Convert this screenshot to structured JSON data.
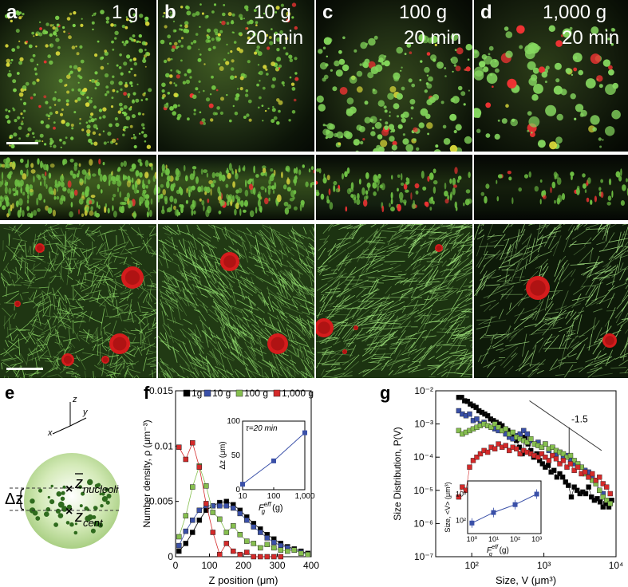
{
  "panels": {
    "a": {
      "letter": "a",
      "gravity": "1 g",
      "time": ""
    },
    "b": {
      "letter": "b",
      "gravity": "10 g",
      "time": "20 min"
    },
    "c": {
      "letter": "c",
      "gravity": "100 g",
      "time": "20 min"
    },
    "d": {
      "letter": "d",
      "gravity": "1,000 g",
      "time": "20 min"
    },
    "e": {
      "letter": "e"
    },
    "f": {
      "letter": "f"
    },
    "g": {
      "letter": "g"
    }
  },
  "schematic": {
    "axis_x": "x",
    "axis_y": "y",
    "axis_z": "z",
    "delta_z": "Δz",
    "z_nucleoli": "nucleoli",
    "z_cent": "cent",
    "z_symbol": "z",
    "cross_mark": "×"
  },
  "colors": {
    "black_series": "#000000",
    "blue_series": "#3a50a8",
    "green_series": "#86bf4f",
    "red_series": "#d42a2a"
  },
  "chart_data": [
    {
      "id": "f",
      "type": "line",
      "xlabel": "Z position (μm)",
      "ylabel": "Number density, ρ (μm⁻³)",
      "xlim": [
        0,
        400
      ],
      "ylim": [
        0,
        0.015
      ],
      "xticks": [
        "0",
        "100",
        "200",
        "300",
        "400"
      ],
      "yticks": [
        "0",
        "0.005",
        "0.01",
        "0.015"
      ],
      "ytick_values": [
        0,
        0.005,
        0.01,
        0.015
      ],
      "xtick_values": [
        0,
        100,
        200,
        300,
        400
      ],
      "legend_position": "top",
      "series": [
        {
          "name": "1g",
          "color": "#000000",
          "x": [
            10,
            30,
            50,
            70,
            90,
            110,
            130,
            150,
            170,
            190,
            210,
            230,
            250,
            270,
            290,
            310,
            330,
            350,
            370,
            390
          ],
          "y": [
            0.0005,
            0.0012,
            0.0022,
            0.0033,
            0.0042,
            0.0046,
            0.0049,
            0.005,
            0.0047,
            0.0042,
            0.0036,
            0.003,
            0.0025,
            0.002,
            0.0016,
            0.0012,
            0.0009,
            0.0007,
            0.0005,
            0.0003
          ]
        },
        {
          "name": "10 g",
          "color": "#3a50a8",
          "x": [
            10,
            30,
            50,
            70,
            90,
            110,
            130,
            150,
            170,
            190,
            210,
            230,
            250,
            270,
            290,
            310,
            330,
            350,
            370,
            390
          ],
          "y": [
            0.001,
            0.0023,
            0.0033,
            0.0042,
            0.0046,
            0.0046,
            0.0046,
            0.0046,
            0.0044,
            0.0039,
            0.0033,
            0.0027,
            0.0022,
            0.0017,
            0.0013,
            0.001,
            0.0008,
            0.0006,
            0.0004,
            0.0002
          ]
        },
        {
          "name": "100 g",
          "color": "#86bf4f",
          "x": [
            10,
            30,
            50,
            70,
            90,
            110,
            130,
            150,
            170,
            190,
            210,
            230,
            250,
            270,
            290,
            310,
            330,
            350,
            370,
            390
          ],
          "y": [
            0.0018,
            0.0037,
            0.0063,
            0.0082,
            0.0064,
            0.004,
            0.0034,
            0.0022,
            0.0028,
            0.002,
            0.0014,
            0.0012,
            0.0008,
            0.0011,
            0.0008,
            0.0006,
            0.0005,
            0.0006,
            0.0003,
            0.0002
          ]
        },
        {
          "name": "1,000 g",
          "color": "#d42a2a",
          "x": [
            10,
            30,
            50,
            70,
            90,
            110,
            130,
            150,
            170,
            190,
            210,
            230,
            250,
            270,
            290,
            310
          ],
          "y": [
            0.0099,
            0.0088,
            0.0103,
            0.0081,
            0.0048,
            0.0022,
            0.0002,
            0.0012,
            0.0005,
            0.0002,
            0.0004,
            0.0,
            0.0,
            0.0,
            0.0,
            0.0
          ]
        }
      ],
      "inset": {
        "type": "line",
        "annotation": "τ=20 min",
        "xlabel_main": "F",
        "xlabel_sup": "eff",
        "xlabel_sub": "g",
        "xlabel_unit": " (g)",
        "ylabel": "Δz (μm)",
        "xscale": "log",
        "xlim": [
          10,
          1000
        ],
        "ylim": [
          0,
          100
        ],
        "xticks": [
          "10",
          "100",
          "1,000"
        ],
        "yticks": [
          "0",
          "50",
          "100"
        ],
        "x": [
          10,
          100,
          1000
        ],
        "y": [
          8,
          42,
          83
        ],
        "color": "#3a50a8"
      }
    },
    {
      "id": "g",
      "type": "scatter",
      "xlabel": "Size, V (μm³)",
      "ylabel": "Size Distribution, P(V)",
      "xscale": "log",
      "yscale": "log",
      "xlim_exp": [
        1.5,
        4
      ],
      "ylim_exp": [
        -7,
        -2
      ],
      "xticks": [
        "10²",
        "10³",
        "10⁴"
      ],
      "yticks": [
        "10⁻⁷",
        "10⁻⁶",
        "10⁻⁵",
        "10⁻⁴",
        "10⁻³",
        "10⁻²"
      ],
      "slope_label": "-1.5",
      "series": [
        {
          "name": "1g",
          "color": "#000000",
          "x_exp": [
            1.82,
            1.86,
            1.9,
            1.94,
            1.98,
            2.02,
            2.06,
            2.1,
            2.14,
            2.18,
            2.22,
            2.26,
            2.3,
            2.34,
            2.38,
            2.42,
            2.46,
            2.5,
            2.54,
            2.58,
            2.62,
            2.66,
            2.7,
            2.74,
            2.78,
            2.82,
            2.86,
            2.9,
            2.94,
            2.98,
            3.02,
            3.06,
            3.1,
            3.14,
            3.18,
            3.22,
            3.26,
            3.3,
            3.34,
            3.38,
            3.42,
            3.46,
            3.5,
            3.54,
            3.58,
            3.62,
            3.66,
            3.7,
            3.74,
            3.78,
            3.82,
            3.86,
            3.9,
            3.94
          ],
          "y_exp": [
            -2.2,
            -2.2,
            -2.3,
            -2.32,
            -2.4,
            -2.45,
            -2.5,
            -2.6,
            -2.65,
            -2.7,
            -2.75,
            -2.85,
            -2.9,
            -2.95,
            -3.0,
            -3.05,
            -3.15,
            -3.2,
            -3.3,
            -3.4,
            -3.5,
            -3.7,
            -3.9,
            -3.4,
            -3.6,
            -3.8,
            -4.0,
            -3.9,
            -4.1,
            -4.2,
            -4.3,
            -4.25,
            -4.45,
            -4.4,
            -4.6,
            -4.5,
            -4.6,
            -4.75,
            -4.85,
            -5.2,
            -4.9,
            -5.0,
            -5.1,
            -5.05,
            -5.1,
            -4.9,
            -5.2,
            -5.3,
            -5.25,
            -5.35,
            -5.5,
            -5.4,
            -5.5,
            -5.3
          ]
        },
        {
          "name": "10 g",
          "color": "#3a50a8",
          "x_exp": [
            1.82,
            1.87,
            1.92,
            1.97,
            2.02,
            2.07,
            2.12,
            2.17,
            2.22,
            2.27,
            2.32,
            2.37,
            2.42,
            2.47,
            2.52,
            2.57,
            2.62,
            2.67,
            2.72,
            2.77,
            2.82,
            2.87,
            2.92,
            2.97,
            3.02,
            3.07,
            3.12,
            3.17,
            3.22,
            3.27,
            3.32,
            3.37,
            3.42,
            3.47,
            3.52,
            3.57,
            3.62,
            3.67,
            3.72,
            3.77,
            3.82,
            3.87,
            3.92
          ],
          "y_exp": [
            -2.6,
            -2.7,
            -2.75,
            -2.7,
            -2.9,
            -2.85,
            -3.0,
            -2.95,
            -3.05,
            -3.1,
            -3.15,
            -3.2,
            -3.2,
            -3.3,
            -3.4,
            -3.45,
            -3.35,
            -3.3,
            -3.2,
            -3.3,
            -3.5,
            -3.6,
            -3.55,
            -3.7,
            -3.6,
            -3.8,
            -3.7,
            -3.9,
            -3.85,
            -4.0,
            -3.95,
            -4.1,
            -4.2,
            -4.25,
            -4.3,
            -4.4,
            -4.45,
            -4.6,
            -4.7,
            -5.0,
            -5.1,
            -5.3,
            -5.4
          ]
        },
        {
          "name": "100 g",
          "color": "#86bf4f",
          "x_exp": [
            1.82,
            1.87,
            1.92,
            1.97,
            2.02,
            2.07,
            2.12,
            2.17,
            2.22,
            2.27,
            2.32,
            2.37,
            2.42,
            2.47,
            2.52,
            2.57,
            2.62,
            2.67,
            2.72,
            2.77,
            2.82,
            2.87,
            2.92,
            2.97,
            3.02,
            3.07,
            3.12,
            3.17,
            3.22,
            3.27,
            3.32,
            3.37,
            3.42,
            3.47,
            3.52,
            3.57,
            3.62,
            3.67,
            3.72,
            3.77,
            3.82,
            3.87,
            3.92
          ],
          "y_exp": [
            -3.2,
            -3.3,
            -3.25,
            -3.2,
            -3.15,
            -3.1,
            -3.05,
            -3.0,
            -3.05,
            -3.1,
            -3.0,
            -3.1,
            -3.2,
            -3.15,
            -3.3,
            -3.25,
            -3.4,
            -3.45,
            -3.5,
            -3.55,
            -3.45,
            -3.6,
            -3.65,
            -3.7,
            -3.6,
            -3.75,
            -3.7,
            -3.8,
            -3.85,
            -3.9,
            -4.0,
            -3.95,
            -4.1,
            -4.2,
            -4.3,
            -4.5,
            -4.6,
            -4.7,
            -4.8,
            -5.0,
            -5.2,
            -5.3,
            -5.4
          ]
        },
        {
          "name": "1,000 g",
          "color": "#d42a2a",
          "x_exp": [
            1.82,
            1.87,
            1.92,
            1.97,
            2.02,
            2.07,
            2.12,
            2.17,
            2.22,
            2.27,
            2.32,
            2.37,
            2.42,
            2.47,
            2.52,
            2.57,
            2.62,
            2.67,
            2.72,
            2.77,
            2.82,
            2.87,
            2.92,
            2.97,
            3.02,
            3.07,
            3.12,
            3.17,
            3.22,
            3.27,
            3.32,
            3.37,
            3.42,
            3.47,
            3.52,
            3.57,
            3.62,
            3.67,
            3.72,
            3.77,
            3.82,
            3.87,
            3.92
          ],
          "y_exp": [
            -5.2,
            -4.9,
            -5.0,
            -4.3,
            -4.1,
            -4.0,
            -3.9,
            -3.8,
            -3.85,
            -3.7,
            -3.75,
            -3.6,
            -3.7,
            -3.65,
            -3.8,
            -3.7,
            -3.75,
            -3.9,
            -3.8,
            -3.85,
            -3.9,
            -3.95,
            -4.0,
            -3.9,
            -4.0,
            -4.1,
            -3.95,
            -4.05,
            -4.2,
            -4.1,
            -4.3,
            -4.2,
            -4.4,
            -4.3,
            -4.5,
            -4.45,
            -4.6,
            -4.5,
            -4.7,
            -4.6,
            -4.8,
            -4.9,
            -5.1
          ]
        }
      ],
      "inset": {
        "type": "line",
        "ylabel": "Size, <V> (μm³)",
        "xlabel_main": "F",
        "xlabel_sup": "eff",
        "xlabel_sub": "g",
        "xlabel_unit": " (g)",
        "xscale": "log",
        "yscale": "log",
        "xticks": [
          "10⁰",
          "10¹",
          "10²",
          "10³"
        ],
        "yticks": [
          "10²",
          "10³"
        ],
        "x_exp": [
          0,
          1,
          2,
          3
        ],
        "y_exp": [
          1.9,
          2.3,
          2.6,
          3.0
        ],
        "color": "#3a50a8"
      }
    }
  ]
}
